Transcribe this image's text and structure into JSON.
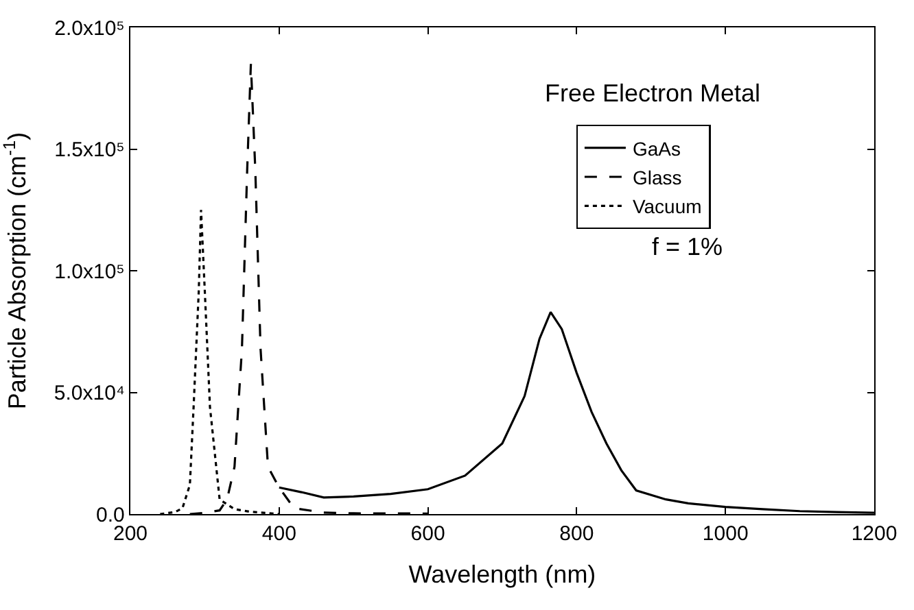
{
  "chart_data": {
    "type": "line",
    "xlabel": "Wavelength (nm)",
    "ylabel": "Particle Absorption (cm$^{-1}$)",
    "xlim": [
      200,
      1200
    ],
    "xticks": [
      200,
      400,
      600,
      800,
      1000,
      1200
    ],
    "ylim": [
      0,
      200000
    ],
    "yticks": [
      {
        "value": 0,
        "label": "0.0"
      },
      {
        "value": 50000,
        "label": "5.0x10⁴"
      },
      {
        "value": 100000,
        "label": "1.0x10⁵"
      },
      {
        "value": 150000,
        "label": "1.5x10⁵"
      },
      {
        "value": 200000,
        "label": "2.0x10⁵"
      }
    ],
    "legend": "top right",
    "marker": "none",
    "annotations": [
      "Free Electron Metal",
      "f = 1%"
    ],
    "series": [
      {
        "name": "GaAs",
        "color": "#000000",
        "line_style": "solid",
        "x": [
          400,
          430,
          460,
          500,
          550,
          600,
          650,
          700,
          730,
          750,
          765,
          780,
          800,
          820,
          840,
          860,
          880,
          920,
          950,
          1000,
          1050,
          1100,
          1150,
          1200
        ],
        "values": [
          10900,
          9000,
          6800,
          7200,
          8300,
          10200,
          15800,
          29000,
          48500,
          72000,
          83000,
          76000,
          58000,
          42000,
          29000,
          18000,
          9700,
          6000,
          4400,
          2900,
          2000,
          1200,
          800,
          500
        ]
      },
      {
        "name": "Glass",
        "color": "#000000",
        "line_style": "dashed",
        "x": [
          280,
          300,
          320,
          330,
          340,
          350,
          357,
          362,
          368,
          375,
          385,
          400,
          420,
          460,
          500,
          600
        ],
        "values": [
          0,
          500,
          1500,
          6000,
          19400,
          68000,
          141000,
          185000,
          141000,
          68000,
          19400,
          10900,
          2400,
          600,
          300,
          200
        ]
      },
      {
        "name": "Vacuum",
        "color": "#000000",
        "line_style": "dotted",
        "x": [
          240,
          260,
          270,
          280,
          285,
          292,
          295,
          300,
          307,
          320,
          340,
          360,
          400
        ],
        "values": [
          0,
          800,
          2400,
          12000,
          44000,
          92000,
          125000,
          92000,
          44000,
          6000,
          2000,
          1000,
          0
        ]
      }
    ]
  }
}
